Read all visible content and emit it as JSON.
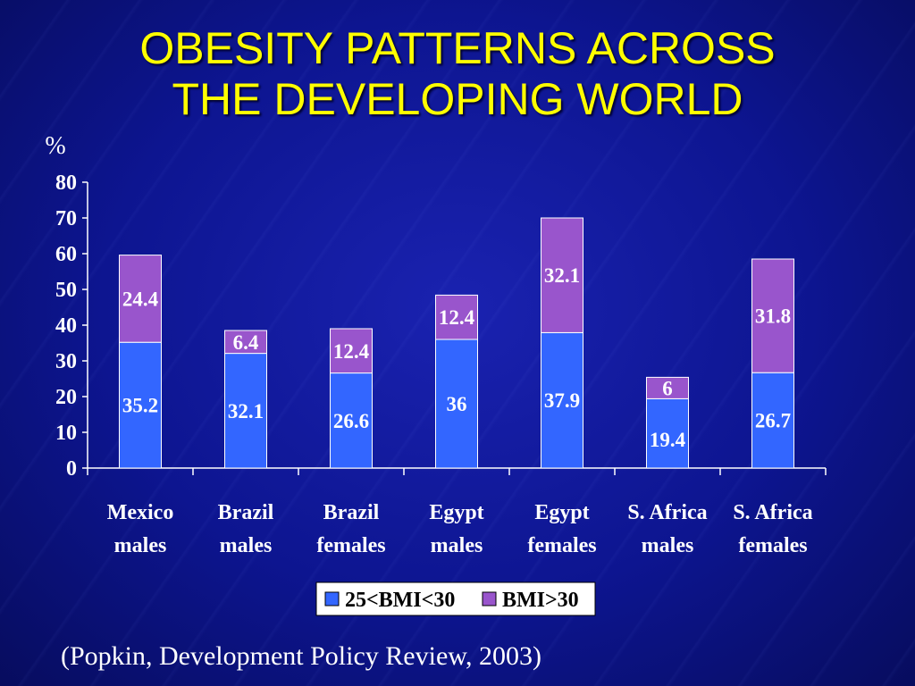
{
  "title_lines": [
    "OBESITY PATTERNS ACROSS",
    "THE DEVELOPING WORLD"
  ],
  "source": "(Popkin, Development Policy Review, 2003)",
  "colors": {
    "background": "#0d1590",
    "title": "#ffff00",
    "series1": "#3366ff",
    "series2": "#9955cc",
    "text": "#ffffff"
  },
  "chart_data": {
    "type": "bar",
    "stacked": true,
    "ylabel": "%",
    "ylim": [
      0,
      80
    ],
    "yticks": [
      0,
      10,
      20,
      30,
      40,
      50,
      60,
      70,
      80
    ],
    "categories": [
      [
        "Mexico",
        "males"
      ],
      [
        "Brazil",
        "males"
      ],
      [
        "Brazil",
        "females"
      ],
      [
        "Egypt",
        "males"
      ],
      [
        "Egypt",
        "females"
      ],
      [
        "S. Africa",
        "males"
      ],
      [
        "S. Africa",
        "females"
      ]
    ],
    "series": [
      {
        "name": "25<BMI<30",
        "color": "#3366ff",
        "values": [
          35.2,
          32.1,
          26.6,
          36,
          37.9,
          19.4,
          26.7
        ],
        "labels": [
          "35.2",
          "32.1",
          "26.6",
          "36",
          "37.9",
          "19.4",
          "26.7"
        ]
      },
      {
        "name": "BMI>30",
        "color": "#9955cc",
        "values": [
          24.4,
          6.4,
          12.4,
          12.4,
          32.1,
          6,
          31.8
        ],
        "labels": [
          "24.4",
          "6.4",
          "12.4",
          "12.4",
          "32.1",
          "6",
          "31.8"
        ]
      }
    ],
    "legend_position": "bottom"
  }
}
